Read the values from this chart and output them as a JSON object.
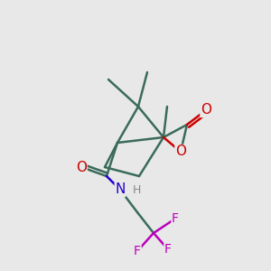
{
  "bg_color": "#e8e8e8",
  "bond_color": "#3a6b5a",
  "bond_width": 1.8,
  "atom_colors": {
    "O": "#cc0000",
    "N": "#2200cc",
    "F": "#bb00bb",
    "H": "#888888",
    "C": "#3a6b5a"
  },
  "figsize": [
    3.0,
    3.0
  ],
  "dpi": 100
}
